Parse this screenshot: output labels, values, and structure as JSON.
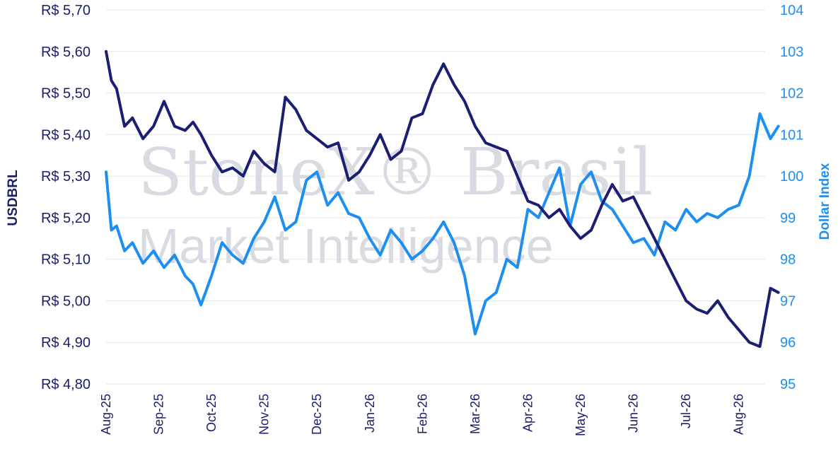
{
  "watermark": {
    "line1": "StoneX® Brasil",
    "line2": "Market Intelligence"
  },
  "colors": {
    "usdbrl": "#1a1f72",
    "dxy": "#1e8ff0",
    "grid": "#e6e6e6"
  },
  "chart_data": {
    "type": "line",
    "xlabel": "",
    "ylabel_left": "USDBRL",
    "ylabel_right": "Dollar Index",
    "ylim_left": [
      4.8,
      5.7
    ],
    "ylim_right": [
      95,
      104
    ],
    "left_ticks": [
      "R$ 5,70",
      "R$ 5,60",
      "R$ 5,50",
      "R$ 5,40",
      "R$ 5,30",
      "R$ 5,20",
      "R$ 5,10",
      "R$ 5,00",
      "R$ 4,90",
      "R$ 4,80"
    ],
    "right_ticks": [
      "104",
      "103",
      "102",
      "101",
      "100",
      "99",
      "98",
      "97",
      "96",
      "95"
    ],
    "x_ticks": [
      "Aug-25",
      "Sep-25",
      "Oct-25",
      "Nov-25",
      "Dec-25",
      "Jan-26",
      "Feb-26",
      "Mar-26",
      "Apr-26",
      "May-26",
      "Jun-26",
      "Jul-26",
      "Aug-26"
    ],
    "grid": true,
    "series": [
      {
        "name": "USDBRL",
        "axis": "left",
        "x": [
          0,
          0.1,
          0.2,
          0.35,
          0.5,
          0.7,
          0.9,
          1.1,
          1.3,
          1.5,
          1.65,
          1.8,
          2.0,
          2.2,
          2.4,
          2.6,
          2.8,
          3.0,
          3.2,
          3.4,
          3.6,
          3.8,
          4.0,
          4.2,
          4.4,
          4.6,
          4.8,
          5.0,
          5.2,
          5.4,
          5.6,
          5.8,
          6.0,
          6.2,
          6.4,
          6.6,
          6.8,
          7.0,
          7.2,
          7.4,
          7.6,
          7.8,
          8.0,
          8.2,
          8.4,
          8.6,
          8.8,
          9.0,
          9.2,
          9.4,
          9.6,
          9.8,
          10.0,
          10.2,
          10.4,
          10.6,
          10.8,
          11.0,
          11.2,
          11.4,
          11.6,
          11.8,
          12.0,
          12.2,
          12.4,
          12.6,
          12.75
        ],
        "values": [
          5.6,
          5.53,
          5.51,
          5.42,
          5.44,
          5.39,
          5.42,
          5.48,
          5.42,
          5.41,
          5.43,
          5.4,
          5.35,
          5.31,
          5.32,
          5.3,
          5.36,
          5.33,
          5.31,
          5.49,
          5.46,
          5.41,
          5.39,
          5.37,
          5.38,
          5.29,
          5.31,
          5.35,
          5.4,
          5.34,
          5.36,
          5.44,
          5.45,
          5.52,
          5.57,
          5.52,
          5.48,
          5.42,
          5.38,
          5.37,
          5.36,
          5.3,
          5.24,
          5.23,
          5.2,
          5.22,
          5.18,
          5.15,
          5.17,
          5.23,
          5.28,
          5.24,
          5.25,
          5.2,
          5.15,
          5.1,
          5.05,
          5.0,
          4.98,
          4.97,
          5.0,
          4.96,
          4.93,
          4.9,
          4.89,
          5.03,
          5.02
        ]
      },
      {
        "name": "Dollar Index",
        "axis": "right",
        "x": [
          0,
          0.1,
          0.2,
          0.35,
          0.5,
          0.7,
          0.9,
          1.1,
          1.3,
          1.5,
          1.65,
          1.8,
          2.0,
          2.2,
          2.4,
          2.6,
          2.8,
          3.0,
          3.2,
          3.4,
          3.6,
          3.8,
          4.0,
          4.2,
          4.4,
          4.6,
          4.8,
          5.0,
          5.2,
          5.4,
          5.6,
          5.8,
          6.0,
          6.2,
          6.4,
          6.6,
          6.8,
          7.0,
          7.2,
          7.4,
          7.6,
          7.8,
          8.0,
          8.2,
          8.4,
          8.6,
          8.8,
          9.0,
          9.2,
          9.4,
          9.6,
          9.8,
          10.0,
          10.2,
          10.4,
          10.6,
          10.8,
          11.0,
          11.2,
          11.4,
          11.6,
          11.8,
          12.0,
          12.2,
          12.4,
          12.6,
          12.75
        ],
        "values": [
          100.1,
          98.7,
          98.8,
          98.2,
          98.4,
          97.9,
          98.2,
          97.8,
          98.1,
          97.6,
          97.4,
          96.9,
          97.6,
          98.4,
          98.1,
          97.9,
          98.5,
          98.9,
          99.5,
          98.7,
          98.9,
          99.9,
          100.1,
          99.3,
          99.6,
          99.1,
          99.0,
          98.5,
          98.1,
          98.7,
          98.4,
          98.0,
          98.2,
          98.5,
          98.9,
          98.4,
          97.6,
          96.2,
          97.0,
          97.2,
          98.0,
          97.8,
          99.2,
          99.0,
          99.6,
          100.2,
          98.8,
          99.8,
          100.1,
          99.4,
          99.2,
          98.8,
          98.4,
          98.5,
          98.1,
          98.9,
          98.7,
          99.2,
          98.9,
          99.1,
          99.0,
          99.2,
          99.3,
          100.0,
          101.5,
          100.9,
          101.2
        ]
      }
    ]
  }
}
